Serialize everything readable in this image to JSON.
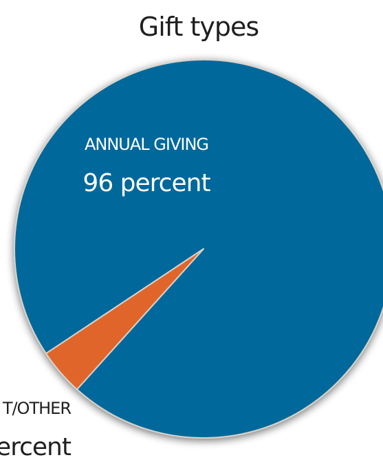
{
  "chart_data": {
    "type": "pie",
    "title": "Gift types",
    "slices": [
      {
        "label": "ANNUAL GIVING",
        "value": 96,
        "value_text": "96 percent",
        "color": "#00679b"
      },
      {
        "label": "T/OTHER",
        "value": 4,
        "value_text": "percent",
        "color": "#e0652a"
      }
    ]
  }
}
